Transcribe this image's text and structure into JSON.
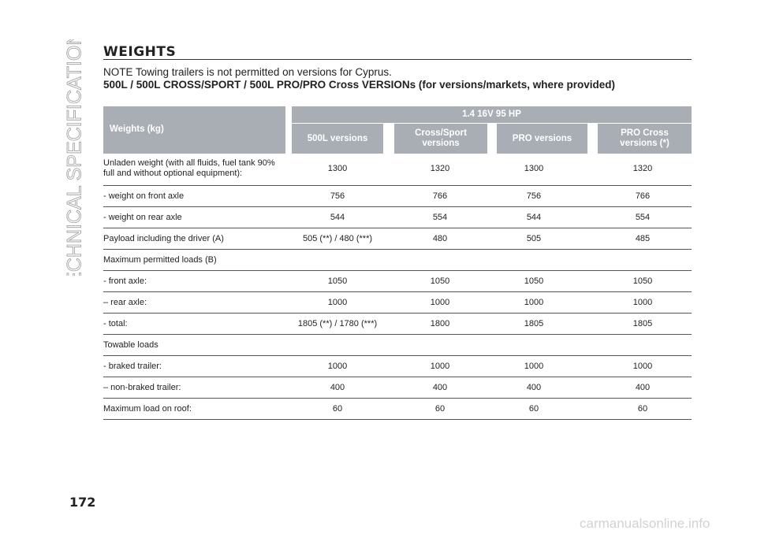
{
  "sidebar": "TECHNICAL SPECIFICATIONS",
  "title": "WEIGHTS",
  "note": "NOTE Towing trailers is not permitted on versions for Cyprus.",
  "subtitle": "500L / 500L CROSS/SPORT / 500L PRO/PRO Cross VERSIONs (for versions/markets, where provided)",
  "table": {
    "header": {
      "row_label": "Weights (kg)",
      "engine": "1.4 16V 95 HP",
      "columns": [
        "500L versions",
        "Cross/Sport versions",
        "PRO versions",
        "PRO Cross versions (*)"
      ]
    },
    "rows": [
      {
        "label": "Unladen weight (with all fluids, fuel tank 90% full and without optional equipment):",
        "values": [
          1300,
          1320,
          1300,
          1320
        ]
      },
      {
        "label": "- weight on front axle",
        "values": [
          756,
          766,
          756,
          766
        ]
      },
      {
        "label": "- weight on rear axle",
        "values": [
          544,
          554,
          544,
          554
        ]
      },
      {
        "label": "Payload including the driver (A)",
        "values": [
          "505 (**) / 480 (***)",
          480,
          505,
          485
        ]
      },
      {
        "label": "Maximum permitted loads (B)"
      },
      {
        "label": "- front axle:",
        "values": [
          1050,
          1050,
          1050,
          1050
        ]
      },
      {
        "label": "– rear axle:",
        "values": [
          1000,
          1000,
          1000,
          1000
        ]
      },
      {
        "label": "- total:",
        "values": [
          "1805 (**) / 1780 (***)",
          1800,
          1805,
          1805
        ]
      },
      {
        "label": "Towable loads"
      },
      {
        "label": "- braked trailer:",
        "values": [
          1000,
          1000,
          1000,
          1000
        ]
      },
      {
        "label": "– non-braked trailer:",
        "values": [
          400,
          400,
          400,
          400
        ]
      },
      {
        "label": "Maximum load on roof:",
        "values": [
          60,
          60,
          60,
          60
        ]
      }
    ]
  },
  "page_number": "172",
  "watermark": "carmanualsonline.info"
}
